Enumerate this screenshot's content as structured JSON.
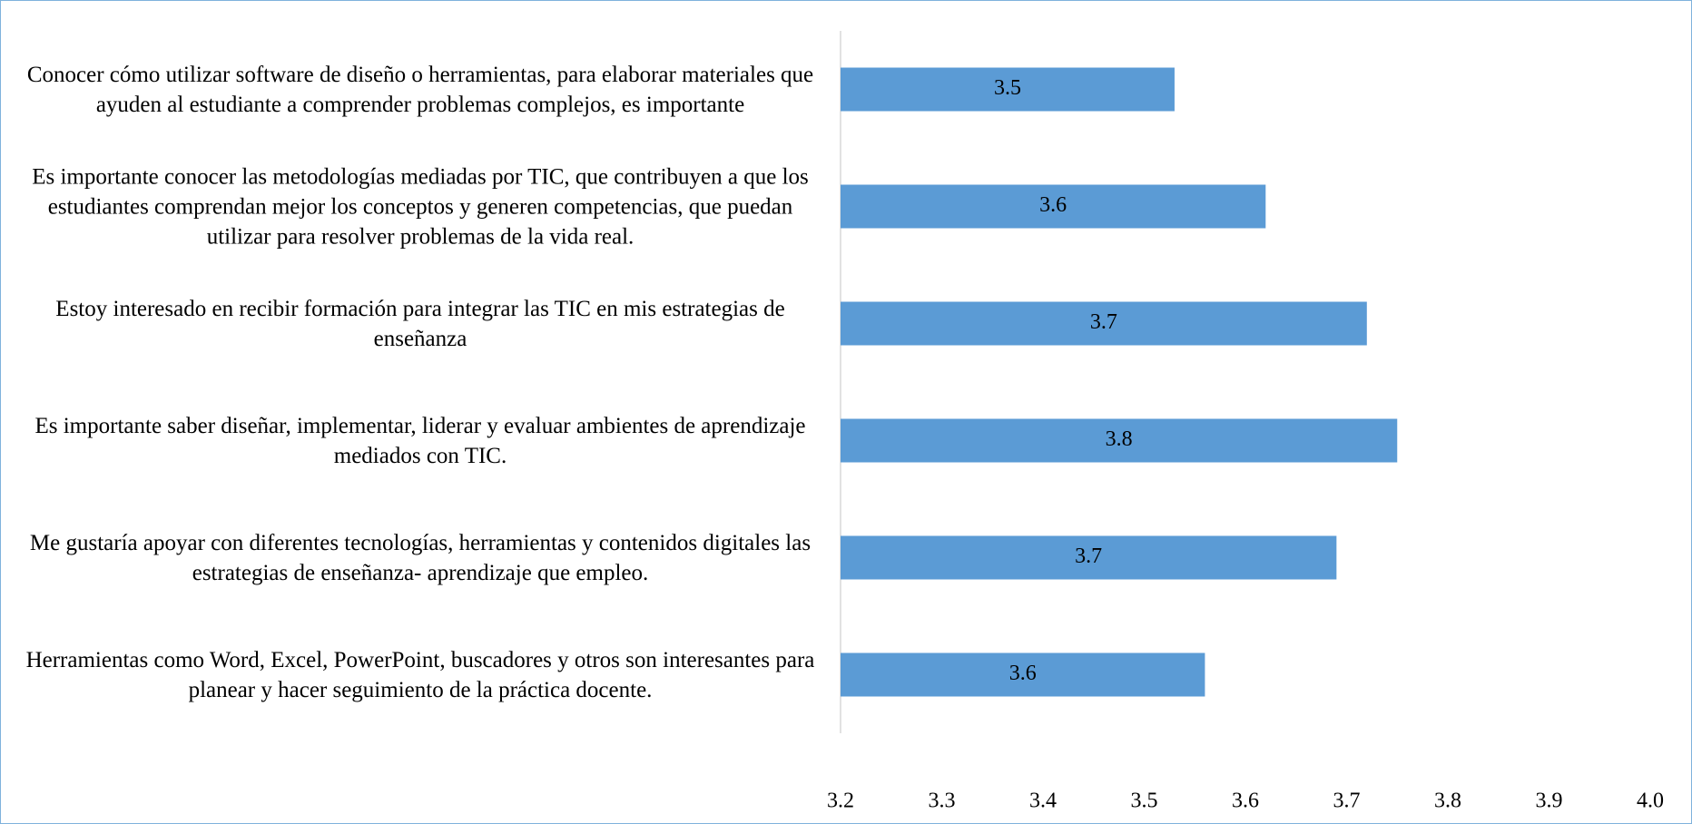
{
  "chart_data": {
    "type": "barh",
    "categories": [
      "Conocer cómo utilizar software de diseño o herramientas, para elaborar materiales que ayuden al estudiante a comprender problemas complejos, es importante",
      "Es importante conocer las metodologías mediadas por TIC, que contribuyen a que los estudiantes comprendan mejor los conceptos y generen competencias, que puedan utilizar para resolver problemas de la vida real.",
      "Estoy interesado en recibir formación para integrar las TIC en mis estrategias de enseñanza",
      "Es importante saber diseñar, implementar, liderar y evaluar ambientes de aprendizaje mediados con TIC.",
      "Me gustaría apoyar con diferentes tecnologías, herramientas y contenidos digitales las estrategias de enseñanza- aprendizaje que empleo.",
      "Herramientas como Word, Excel, PowerPoint, buscadores y otros son interesantes para planear y hacer seguimiento de la práctica docente."
    ],
    "values": [
      3.53,
      3.62,
      3.72,
      3.75,
      3.69,
      3.56
    ],
    "value_labels": [
      "3.5",
      "3.6",
      "3.7",
      "3.8",
      "3.7",
      "3.6"
    ],
    "color": "#5b9bd5",
    "xlim": [
      3.2,
      4.0
    ],
    "xticks": [
      3.2,
      3.3,
      3.4,
      3.5,
      3.6,
      3.7,
      3.8,
      3.9,
      {
        "value": 4.0,
        "label": "4.0"
      }
    ],
    "grid": false
  }
}
